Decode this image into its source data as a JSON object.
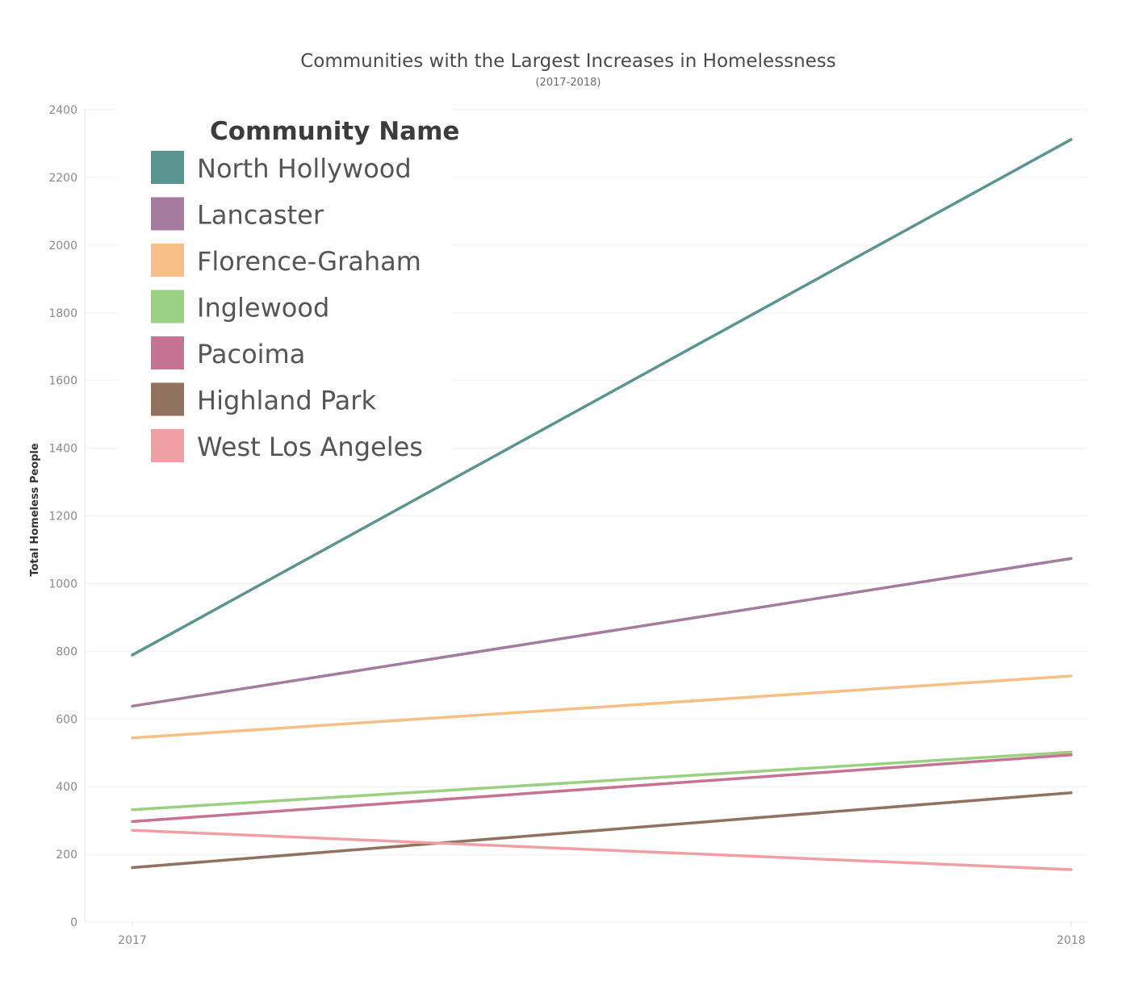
{
  "chart_data": {
    "type": "line",
    "title": "Communities with the Largest Increases in Homelessness",
    "subtitle": "(2017-2018)",
    "xlabel": "",
    "ylabel": "Total Homeless People",
    "x": [
      "2017",
      "2018"
    ],
    "ylim": [
      0,
      2400
    ],
    "yticks": [
      "0",
      "200",
      "400",
      "600",
      "800",
      "1000",
      "1200",
      "1400",
      "1600",
      "1800",
      "2000",
      "2200",
      "2400"
    ],
    "grid": true,
    "legend": {
      "title": "Community Name",
      "position": "top-left"
    },
    "series": [
      {
        "name": "North Hollywood",
        "values": [
          789,
          2312
        ],
        "color": "#5b9591"
      },
      {
        "name": "Lancaster",
        "values": [
          638,
          1074
        ],
        "color": "#a57c9f"
      },
      {
        "name": "Florence-Graham",
        "values": [
          544,
          727
        ],
        "color": "#f5bf85"
      },
      {
        "name": "Inglewood",
        "values": [
          332,
          502
        ],
        "color": "#9ad082"
      },
      {
        "name": "Pacoima",
        "values": [
          297,
          494
        ],
        "color": "#c67393"
      },
      {
        "name": "Highland Park",
        "values": [
          161,
          382
        ],
        "color": "#917260"
      },
      {
        "name": "West Los Angeles",
        "values": [
          271,
          155
        ],
        "color": "#f0a0a5"
      }
    ]
  }
}
